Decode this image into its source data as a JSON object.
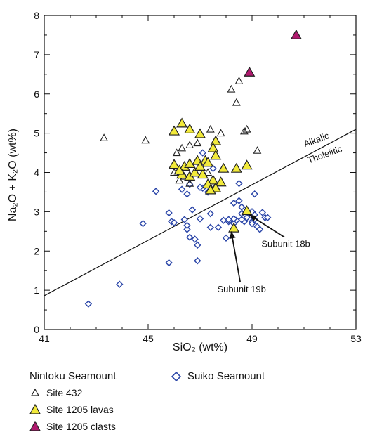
{
  "chart_data": {
    "type": "scatter",
    "xlabel": "SiO₂ (wt%)",
    "ylabel": "Na₂O + K₂O (wt%)",
    "xlim": [
      41,
      53
    ],
    "ylim": [
      0,
      8
    ],
    "xticks": [
      41,
      45,
      49,
      53
    ],
    "yticks": [
      0,
      1,
      2,
      3,
      4,
      5,
      6,
      7,
      8
    ],
    "divider": {
      "x": [
        41.0,
        53.0
      ],
      "y": [
        0.86,
        5.1
      ],
      "label_above": "Alkalic",
      "label_below": "Tholeiitic"
    },
    "annotations": [
      {
        "text": "Subunit 18b",
        "point": [
          48.9,
          2.92
        ],
        "text_at": [
          50.3,
          2.1
        ]
      },
      {
        "text": "Subunit 19b",
        "point": [
          48.2,
          2.5
        ],
        "text_at": [
          48.6,
          0.95
        ]
      }
    ],
    "legend": {
      "group_nintoku": "Nintoku Seamount",
      "group_suiko": "Suiko Seamount"
    },
    "series": [
      {
        "name": "Site 432",
        "marker": "triangle-open",
        "stroke": "#222222",
        "fill": "none",
        "points": [
          [
            43.3,
            4.88
          ],
          [
            44.9,
            4.82
          ],
          [
            46.1,
            4.5
          ],
          [
            46.3,
            4.62
          ],
          [
            46.6,
            4.7
          ],
          [
            46.9,
            4.75
          ],
          [
            47.4,
            5.1
          ],
          [
            47.8,
            5.0
          ],
          [
            48.2,
            6.12
          ],
          [
            48.4,
            5.78
          ],
          [
            48.5,
            6.33
          ],
          [
            48.7,
            5.05
          ],
          [
            48.8,
            5.1
          ],
          [
            49.2,
            4.56
          ],
          [
            46.0,
            4.0
          ],
          [
            46.2,
            3.8
          ],
          [
            46.4,
            3.9
          ],
          [
            47.3,
            4.0
          ],
          [
            47.9,
            4.1
          ],
          [
            46.6,
            3.72
          ],
          [
            47.6,
            3.65
          ]
        ]
      },
      {
        "name": "Site 1205 lavas",
        "marker": "triangle",
        "stroke": "#222222",
        "fill": "#f2ea3a",
        "points": [
          [
            46.0,
            5.05
          ],
          [
            46.3,
            5.25
          ],
          [
            46.6,
            5.1
          ],
          [
            47.0,
            4.98
          ],
          [
            47.6,
            4.8
          ],
          [
            47.5,
            4.62
          ],
          [
            47.6,
            4.43
          ],
          [
            47.2,
            4.3
          ],
          [
            46.0,
            4.2
          ],
          [
            46.4,
            4.15
          ],
          [
            46.6,
            4.22
          ],
          [
            46.9,
            4.3
          ],
          [
            47.3,
            4.25
          ],
          [
            47.9,
            4.1
          ],
          [
            48.4,
            4.1
          ],
          [
            48.8,
            4.18
          ],
          [
            46.3,
            3.95
          ],
          [
            46.6,
            3.9
          ],
          [
            46.8,
            4.0
          ],
          [
            47.1,
            3.95
          ],
          [
            47.5,
            3.8
          ],
          [
            47.8,
            3.75
          ],
          [
            47.3,
            3.7
          ],
          [
            47.6,
            3.6
          ],
          [
            47.4,
            3.55
          ],
          [
            48.8,
            3.02
          ],
          [
            48.3,
            2.58
          ],
          [
            46.2,
            4.05
          ],
          [
            47.0,
            4.15
          ]
        ]
      },
      {
        "name": "Site 1205 clasts",
        "marker": "triangle",
        "stroke": "#222222",
        "fill": "#b0196e",
        "points": [
          [
            48.9,
            6.55
          ],
          [
            50.7,
            7.5
          ]
        ]
      },
      {
        "name": "Suiko Seamount",
        "marker": "diamond-open",
        "stroke": "#2a45a8",
        "fill": "#ffffff",
        "points": [
          [
            42.7,
            0.65
          ],
          [
            43.9,
            1.15
          ],
          [
            44.8,
            2.7
          ],
          [
            45.3,
            3.52
          ],
          [
            45.8,
            2.97
          ],
          [
            45.9,
            2.75
          ],
          [
            46.0,
            2.72
          ],
          [
            45.8,
            1.7
          ],
          [
            46.4,
            2.8
          ],
          [
            46.5,
            2.55
          ],
          [
            46.5,
            2.65
          ],
          [
            46.6,
            2.35
          ],
          [
            46.7,
            3.05
          ],
          [
            46.8,
            2.3
          ],
          [
            46.9,
            2.15
          ],
          [
            47.0,
            2.82
          ],
          [
            46.9,
            1.75
          ],
          [
            47.1,
            4.5
          ],
          [
            47.1,
            3.6
          ],
          [
            47.3,
            3.5
          ],
          [
            47.4,
            2.95
          ],
          [
            47.4,
            2.6
          ],
          [
            47.5,
            4.1
          ],
          [
            47.7,
            2.6
          ],
          [
            47.9,
            2.78
          ],
          [
            48.0,
            2.33
          ],
          [
            48.1,
            2.75
          ],
          [
            48.1,
            2.8
          ],
          [
            48.3,
            3.22
          ],
          [
            48.5,
            3.28
          ],
          [
            48.4,
            2.78
          ],
          [
            48.3,
            2.7
          ],
          [
            48.7,
            3.05
          ],
          [
            48.6,
            2.95
          ],
          [
            48.8,
            2.85
          ],
          [
            48.7,
            2.75
          ],
          [
            48.9,
            2.95
          ],
          [
            49.0,
            3.0
          ],
          [
            49.0,
            2.75
          ],
          [
            49.1,
            2.8
          ],
          [
            49.2,
            2.62
          ],
          [
            49.3,
            2.55
          ],
          [
            49.4,
            2.98
          ],
          [
            49.5,
            2.85
          ],
          [
            49.6,
            2.85
          ],
          [
            49.0,
            2.7
          ],
          [
            48.5,
            3.72
          ],
          [
            49.1,
            3.45
          ],
          [
            48.6,
            2.8
          ],
          [
            48.6,
            3.12
          ],
          [
            46.5,
            3.45
          ],
          [
            46.3,
            3.57
          ],
          [
            46.6,
            3.7
          ],
          [
            47.0,
            3.62
          ],
          [
            48.3,
            2.82
          ],
          [
            49.1,
            2.92
          ]
        ]
      }
    ]
  }
}
